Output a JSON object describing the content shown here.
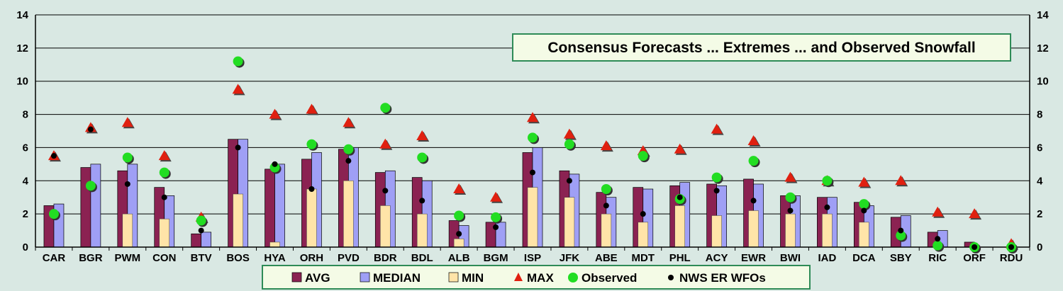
{
  "chart_data": {
    "type": "bar",
    "title": "Consensus Forecasts ... Extremes ... and Observed Snowfall",
    "categories": [
      "CAR",
      "BGR",
      "PWM",
      "CON",
      "BTV",
      "BOS",
      "HYA",
      "ORH",
      "PVD",
      "BDR",
      "BDL",
      "ALB",
      "BGM",
      "ISP",
      "JFK",
      "ABE",
      "MDT",
      "PHL",
      "ACY",
      "EWR",
      "BWI",
      "IAD",
      "DCA",
      "SBY",
      "RIC",
      "ORF",
      "RDU"
    ],
    "ylim": [
      0,
      14
    ],
    "yticks": [
      "0",
      "2",
      "4",
      "6",
      "8",
      "10",
      "12",
      "14"
    ],
    "grid": true,
    "legend_position": "bottom",
    "series": [
      {
        "name": "AVG",
        "type": "bar",
        "color": "#8b2252",
        "values": [
          2.5,
          4.8,
          4.6,
          3.6,
          0.8,
          6.5,
          4.7,
          5.3,
          5.9,
          4.5,
          4.2,
          1.6,
          1.5,
          5.7,
          4.6,
          3.3,
          3.6,
          3.7,
          3.8,
          4.1,
          3.1,
          3.0,
          2.7,
          1.8,
          0.9,
          0.3,
          0.0
        ]
      },
      {
        "name": "MEDIAN",
        "type": "bar",
        "color": "#9f9ff5",
        "values": [
          2.6,
          5.0,
          5.0,
          3.1,
          0.9,
          6.5,
          5.0,
          5.7,
          6.0,
          4.6,
          4.0,
          1.3,
          1.5,
          6.0,
          4.4,
          3.0,
          3.5,
          3.9,
          3.7,
          3.8,
          3.1,
          3.0,
          2.5,
          1.9,
          1.0,
          0.0,
          0.0
        ]
      },
      {
        "name": "MIN",
        "type": "bar",
        "color": "#ffe4a8",
        "values": [
          0,
          0,
          2.0,
          1.7,
          0,
          3.2,
          0.3,
          3.5,
          4.0,
          2.5,
          2.0,
          0.5,
          0,
          3.6,
          3.0,
          2.0,
          1.5,
          2.5,
          1.9,
          2.2,
          2.0,
          2.0,
          1.5,
          0,
          0,
          0,
          0
        ]
      },
      {
        "name": "MAX",
        "type": "marker",
        "color": "#e02010",
        "values": [
          5.5,
          7.2,
          7.5,
          5.5,
          1.8,
          9.5,
          8.0,
          8.3,
          7.5,
          6.2,
          6.7,
          3.5,
          3.0,
          7.8,
          6.8,
          6.1,
          5.8,
          5.9,
          7.1,
          6.4,
          4.2,
          4.0,
          3.9,
          4.0,
          2.1,
          2.0,
          0.2
        ]
      },
      {
        "name": "Observed",
        "type": "marker",
        "color": "#22dd22",
        "values": [
          2.0,
          3.7,
          5.4,
          4.5,
          1.6,
          11.2,
          4.8,
          6.2,
          5.9,
          8.4,
          5.4,
          1.9,
          1.8,
          6.6,
          6.2,
          3.5,
          5.5,
          2.9,
          4.2,
          5.2,
          3.0,
          4.0,
          2.6,
          0.7,
          0.1,
          0.0,
          0.0
        ]
      },
      {
        "name": "NWS ER WFOs",
        "type": "marker",
        "color": "#000000",
        "values": [
          5.5,
          7.1,
          3.8,
          3.0,
          1.0,
          6.0,
          5.0,
          3.5,
          5.2,
          3.4,
          2.8,
          0.8,
          1.2,
          4.5,
          4.0,
          2.5,
          2.0,
          3.0,
          3.4,
          2.8,
          2.2,
          2.4,
          2.2,
          1.0,
          0.5,
          0.0,
          0.0
        ]
      }
    ]
  }
}
